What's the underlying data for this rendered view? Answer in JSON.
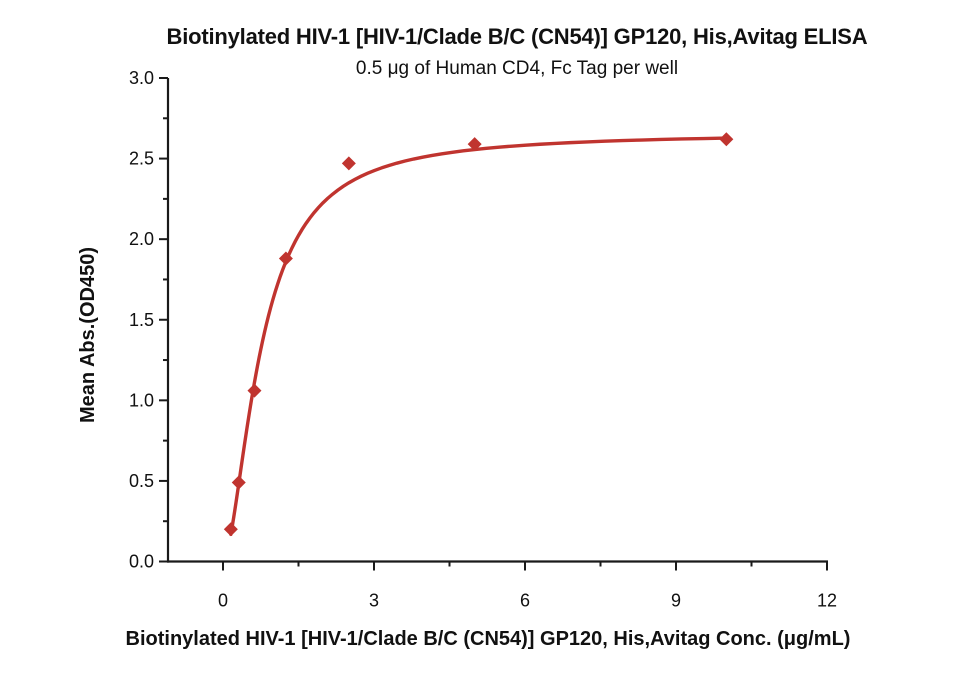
{
  "chart_data": {
    "type": "line",
    "title": "Biotinylated HIV-1 [HIV-1/Clade B/C (CN54)] GP120, His,Avitag ELISA",
    "subtitle": "0.5 μg of Human CD4, Fc Tag per well",
    "xlabel": "Biotinylated HIV-1 [HIV-1/Clade B/C (CN54)] GP120, His,Avitag Conc. (μg/mL)",
    "ylabel": "Mean Abs.(OD450)",
    "x": [
      0.156,
      0.313,
      0.625,
      1.25,
      2.5,
      5,
      10
    ],
    "y": [
      0.2,
      0.49,
      1.06,
      1.88,
      2.47,
      2.59,
      2.62
    ],
    "marker": "diamond",
    "fit": {
      "model": "4PL",
      "bottom": 0,
      "top": 2.66,
      "ec50": 0.76,
      "hill": 1.7,
      "x_start": 0.156,
      "x_end": 10
    },
    "x_axis": {
      "major_ticks": [
        0,
        3,
        6,
        9,
        12
      ],
      "tick_labels": [
        "0",
        "3",
        "6",
        "9",
        "12"
      ],
      "minor_ticks": [
        1.5,
        4.5,
        7.5,
        10.5
      ],
      "range_shown": [
        -1.1,
        12
      ]
    },
    "y_axis": {
      "major_ticks": [
        0,
        0.5,
        1,
        1.5,
        2,
        2.5,
        3
      ],
      "tick_labels": [
        "0.0",
        "0.5",
        "1.0",
        "1.5",
        "2.0",
        "2.5",
        "3.0"
      ],
      "minor_ticks": [
        0.25,
        0.75,
        1.25,
        1.75,
        2.25,
        2.75
      ],
      "range_shown": [
        0,
        3
      ]
    },
    "grid": false,
    "legend": null,
    "colors": {
      "series": "#C0342F",
      "axis": "#1a1a1a",
      "text": "#111111",
      "background": "#ffffff"
    }
  }
}
